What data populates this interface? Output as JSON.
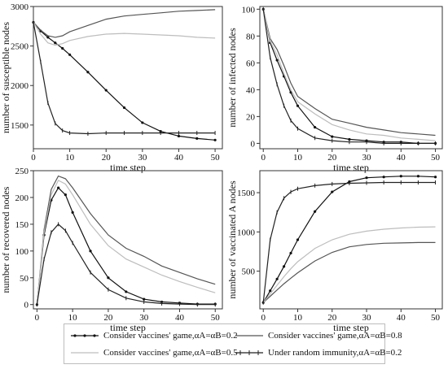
{
  "legend": [
    {
      "label": "Consider vaccines' game,αA=αB=0.2",
      "color": "#111111",
      "marker": "dot"
    },
    {
      "label": "Consider vaccines' game,αA=αB=0.8",
      "color": "#555555",
      "marker": "none"
    },
    {
      "label": "Consider vaccines' game,αA=αB=0.5",
      "color": "#bdbdbd",
      "marker": "none"
    },
    {
      "label": "Under random immunity,αA=αB=0.2",
      "color": "#222222",
      "marker": "tick"
    }
  ],
  "chart_data": [
    {
      "type": "line",
      "xlabel": "time step",
      "ylabel": "number of susceptible nodes",
      "xlim": [
        0,
        52
      ],
      "ylim": [
        1200,
        3000
      ],
      "xticks": [
        0,
        10,
        20,
        30,
        40,
        50
      ],
      "yticks": [
        1500,
        2000,
        2500,
        3000
      ],
      "x": [
        0,
        2,
        4,
        6,
        8,
        10,
        15,
        20,
        25,
        30,
        35,
        40,
        45,
        50
      ],
      "series": [
        {
          "values": [
            2800,
            2690,
            2610,
            2540,
            2470,
            2390,
            2170,
            1940,
            1720,
            1530,
            1420,
            1360,
            1330,
            1310
          ]
        },
        {
          "values": [
            2800,
            2700,
            2630,
            2610,
            2630,
            2680,
            2760,
            2840,
            2880,
            2900,
            2920,
            2940,
            2950,
            2960
          ]
        },
        {
          "values": [
            2800,
            2650,
            2540,
            2510,
            2530,
            2570,
            2620,
            2650,
            2660,
            2650,
            2640,
            2630,
            2610,
            2600
          ]
        },
        {
          "values": [
            2800,
            2300,
            1780,
            1520,
            1430,
            1400,
            1390,
            1400,
            1400,
            1400,
            1400,
            1400,
            1400,
            1400
          ]
        }
      ]
    },
    {
      "type": "line",
      "xlabel": "time step",
      "ylabel": "number of infected nodes",
      "xlim": [
        -1,
        52
      ],
      "ylim": [
        -4,
        102
      ],
      "xticks": [
        0,
        10,
        20,
        30,
        40,
        50
      ],
      "yticks": [
        0,
        20,
        40,
        60,
        80,
        100
      ],
      "x": [
        0,
        2,
        4,
        6,
        8,
        10,
        15,
        20,
        25,
        30,
        35,
        40,
        45,
        50
      ],
      "series": [
        {
          "values": [
            100,
            75,
            62,
            50,
            38,
            28,
            12,
            5,
            3,
            2,
            1,
            1,
            0,
            0
          ]
        },
        {
          "values": [
            100,
            78,
            70,
            58,
            45,
            35,
            26,
            18,
            15,
            12,
            10,
            8,
            7,
            6
          ]
        },
        {
          "values": [
            100,
            76,
            66,
            52,
            40,
            31,
            22,
            14,
            10,
            7,
            6,
            4,
            3,
            2
          ]
        },
        {
          "values": [
            100,
            64,
            44,
            28,
            17,
            11,
            4,
            2,
            1,
            1,
            0,
            0,
            0,
            0
          ]
        }
      ]
    },
    {
      "type": "line",
      "xlabel": "time step",
      "ylabel": "number of recovered nodes",
      "xlim": [
        -1,
        52
      ],
      "ylim": [
        -8,
        250
      ],
      "xticks": [
        0,
        10,
        20,
        30,
        40,
        50
      ],
      "yticks": [
        0,
        50,
        100,
        150,
        200,
        250
      ],
      "x": [
        0,
        2,
        4,
        6,
        8,
        10,
        15,
        20,
        25,
        30,
        35,
        40,
        45,
        50
      ],
      "series": [
        {
          "values": [
            0,
            130,
            195,
            218,
            205,
            172,
            100,
            50,
            24,
            10,
            5,
            3,
            1,
            1
          ]
        },
        {
          "values": [
            0,
            140,
            215,
            240,
            235,
            218,
            170,
            130,
            105,
            90,
            72,
            60,
            48,
            38
          ]
        },
        {
          "values": [
            0,
            135,
            205,
            232,
            225,
            205,
            150,
            110,
            85,
            70,
            55,
            43,
            32,
            22
          ]
        },
        {
          "values": [
            0,
            85,
            135,
            150,
            138,
            115,
            60,
            28,
            12,
            5,
            2,
            1,
            0,
            0
          ]
        }
      ]
    },
    {
      "type": "line",
      "xlabel": "time step",
      "ylabel": "number of vaccinated A nodes",
      "xlim": [
        -1,
        52
      ],
      "ylim": [
        20,
        1780
      ],
      "xticks": [
        0,
        10,
        20,
        30,
        40,
        50
      ],
      "yticks": [
        500,
        1000,
        1500
      ],
      "x": [
        0,
        2,
        4,
        6,
        8,
        10,
        15,
        20,
        25,
        30,
        35,
        40,
        45,
        50
      ],
      "series": [
        {
          "values": [
            100,
            250,
            400,
            560,
            730,
            900,
            1260,
            1510,
            1640,
            1690,
            1700,
            1710,
            1710,
            1700
          ]
        },
        {
          "values": [
            100,
            180,
            260,
            340,
            410,
            480,
            630,
            740,
            810,
            840,
            855,
            860,
            865,
            865
          ]
        },
        {
          "values": [
            100,
            210,
            320,
            430,
            530,
            620,
            790,
            900,
            970,
            1010,
            1035,
            1050,
            1060,
            1065
          ]
        },
        {
          "values": [
            100,
            900,
            1250,
            1430,
            1510,
            1550,
            1590,
            1610,
            1620,
            1625,
            1630,
            1630,
            1630,
            1630
          ]
        }
      ]
    }
  ]
}
